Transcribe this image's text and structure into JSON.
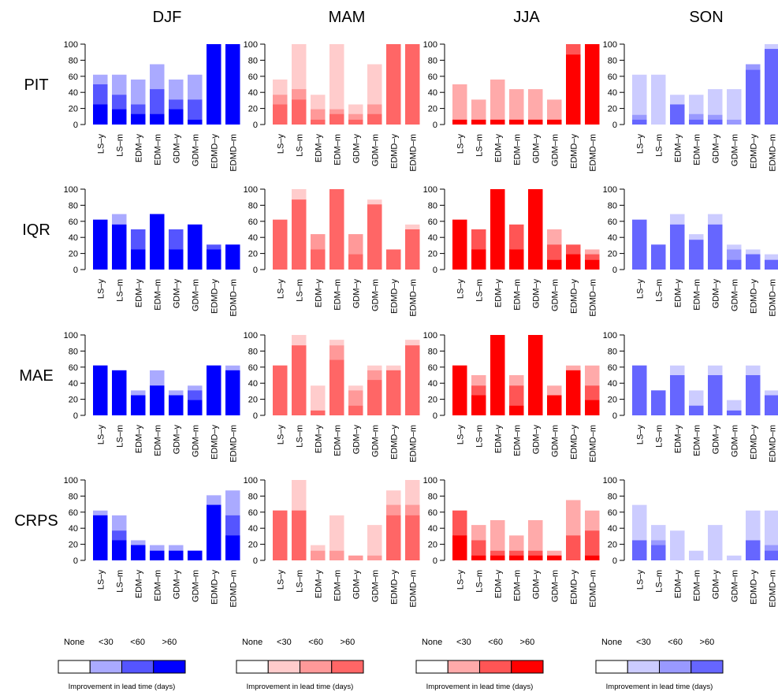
{
  "seasons": [
    "DJF",
    "MAM",
    "JJA",
    "SON"
  ],
  "metrics": [
    "PIT",
    "IQR",
    "MAE",
    "CRPS"
  ],
  "categories": [
    "LS–y",
    "LS–m",
    "EDM–y",
    "EDM–m",
    "GDM–y",
    "GDM–m",
    "EDMD–y",
    "EDMD–m"
  ],
  "yaxis": {
    "ticks": [
      0,
      20,
      40,
      60,
      80,
      100
    ],
    "ylim": [
      0,
      100
    ]
  },
  "palettes": {
    "DJF": [
      "#ffffff",
      "#aaaaff",
      "#5555ff",
      "#0000ff"
    ],
    "MAM": [
      "#ffffff",
      "#ffcccc",
      "#ff9999",
      "#ff6666"
    ],
    "JJA": [
      "#ffffff",
      "#ffaaaa",
      "#ff5555",
      "#ff0000"
    ],
    "SON": [
      "#ffffff",
      "#ccccff",
      "#9999ff",
      "#6666ff"
    ]
  },
  "legend": {
    "labels": [
      "None",
      "<30",
      "<60",
      ">60"
    ],
    "caption": "Improvement in lead time (days)"
  },
  "chart_data": {
    "type": "bar",
    "stacked": true,
    "description": "Each panel: for each category, cumulative percentage reaching improvement thresholds; values are [<30 or better, <60 or better, >60] totals in %.",
    "panels": {
      "PIT": {
        "DJF": [
          [
            62,
            50,
            25
          ],
          [
            62,
            37,
            19
          ],
          [
            56,
            25,
            13
          ],
          [
            75,
            44,
            13
          ],
          [
            56,
            31,
            19
          ],
          [
            62,
            31,
            6
          ],
          [
            100,
            100,
            100
          ],
          [
            100,
            100,
            100
          ]
        ],
        "MAM": [
          [
            56,
            37,
            25
          ],
          [
            100,
            44,
            31
          ],
          [
            37,
            19,
            6
          ],
          [
            100,
            19,
            13
          ],
          [
            25,
            13,
            6
          ],
          [
            75,
            25,
            13
          ],
          [
            100,
            100,
            100
          ],
          [
            100,
            100,
            100
          ]
        ],
        "JJA": [
          [
            50,
            6,
            6
          ],
          [
            31,
            6,
            6
          ],
          [
            56,
            6,
            6
          ],
          [
            44,
            6,
            6
          ],
          [
            44,
            6,
            6
          ],
          [
            31,
            6,
            6
          ],
          [
            100,
            100,
            87
          ],
          [
            100,
            100,
            100
          ]
        ],
        "SON": [
          [
            62,
            12,
            6
          ],
          [
            62,
            0,
            0
          ],
          [
            37,
            25,
            25
          ],
          [
            37,
            13,
            6
          ],
          [
            44,
            12,
            6
          ],
          [
            44,
            6,
            0
          ],
          [
            75,
            75,
            68
          ],
          [
            100,
            94,
            94
          ]
        ]
      },
      "IQR": {
        "DJF": [
          [
            62,
            62,
            62
          ],
          [
            69,
            56,
            56
          ],
          [
            50,
            50,
            25
          ],
          [
            69,
            69,
            69
          ],
          [
            50,
            50,
            25
          ],
          [
            56,
            56,
            56
          ],
          [
            31,
            31,
            25
          ],
          [
            31,
            31,
            31
          ]
        ],
        "MAM": [
          [
            62,
            62,
            62
          ],
          [
            100,
            87,
            87
          ],
          [
            44,
            44,
            25
          ],
          [
            100,
            100,
            100
          ],
          [
            44,
            44,
            19
          ],
          [
            87,
            81,
            81
          ],
          [
            25,
            25,
            25
          ],
          [
            56,
            50,
            50
          ]
        ],
        "JJA": [
          [
            62,
            62,
            62
          ],
          [
            50,
            50,
            25
          ],
          [
            100,
            100,
            100
          ],
          [
            56,
            56,
            25
          ],
          [
            100,
            100,
            100
          ],
          [
            50,
            31,
            12
          ],
          [
            31,
            31,
            19
          ],
          [
            25,
            19,
            12
          ]
        ],
        "SON": [
          [
            62,
            62,
            62
          ],
          [
            31,
            31,
            31
          ],
          [
            69,
            56,
            56
          ],
          [
            44,
            37,
            37
          ],
          [
            69,
            56,
            56
          ],
          [
            31,
            25,
            12
          ],
          [
            25,
            19,
            19
          ],
          [
            19,
            12,
            12
          ]
        ]
      },
      "MAE": {
        "DJF": [
          [
            62,
            62,
            62
          ],
          [
            56,
            56,
            56
          ],
          [
            31,
            25,
            25
          ],
          [
            56,
            37,
            37
          ],
          [
            31,
            25,
            25
          ],
          [
            37,
            31,
            19
          ],
          [
            62,
            62,
            62
          ],
          [
            62,
            56,
            56
          ]
        ],
        "MAM": [
          [
            62,
            62,
            62
          ],
          [
            100,
            87,
            87
          ],
          [
            37,
            6,
            6
          ],
          [
            94,
            87,
            69
          ],
          [
            37,
            31,
            12
          ],
          [
            62,
            56,
            44
          ],
          [
            62,
            56,
            56
          ],
          [
            94,
            87,
            87
          ]
        ],
        "JJA": [
          [
            62,
            62,
            62
          ],
          [
            50,
            37,
            25
          ],
          [
            100,
            100,
            100
          ],
          [
            50,
            37,
            12
          ],
          [
            100,
            100,
            100
          ],
          [
            37,
            25,
            25
          ],
          [
            62,
            56,
            56
          ],
          [
            62,
            37,
            19
          ]
        ],
        "SON": [
          [
            62,
            62,
            62
          ],
          [
            31,
            31,
            31
          ],
          [
            62,
            50,
            50
          ],
          [
            31,
            12,
            12
          ],
          [
            62,
            50,
            50
          ],
          [
            19,
            6,
            6
          ],
          [
            62,
            50,
            50
          ],
          [
            31,
            25,
            25
          ]
        ]
      },
      "CRPS": {
        "DJF": [
          [
            62,
            56,
            56
          ],
          [
            56,
            37,
            25
          ],
          [
            25,
            19,
            19
          ],
          [
            19,
            12,
            12
          ],
          [
            19,
            12,
            12
          ],
          [
            12,
            12,
            12
          ],
          [
            81,
            69,
            69
          ],
          [
            87,
            56,
            31
          ]
        ],
        "MAM": [
          [
            62,
            62,
            62
          ],
          [
            100,
            62,
            62
          ],
          [
            19,
            12,
            0
          ],
          [
            56,
            12,
            0
          ],
          [
            6,
            6,
            0
          ],
          [
            44,
            6,
            0
          ],
          [
            87,
            69,
            56
          ],
          [
            100,
            69,
            56
          ]
        ],
        "JJA": [
          [
            62,
            62,
            31
          ],
          [
            44,
            25,
            6
          ],
          [
            50,
            12,
            6
          ],
          [
            31,
            12,
            6
          ],
          [
            50,
            12,
            6
          ],
          [
            12,
            6,
            6
          ],
          [
            75,
            31,
            0
          ],
          [
            62,
            37,
            6
          ]
        ],
        "SON": [
          [
            69,
            25,
            25
          ],
          [
            44,
            25,
            19
          ],
          [
            37,
            0,
            0
          ],
          [
            12,
            0,
            0
          ],
          [
            44,
            0,
            0
          ],
          [
            6,
            0,
            0
          ],
          [
            62,
            25,
            25
          ],
          [
            62,
            19,
            12
          ]
        ]
      }
    }
  }
}
